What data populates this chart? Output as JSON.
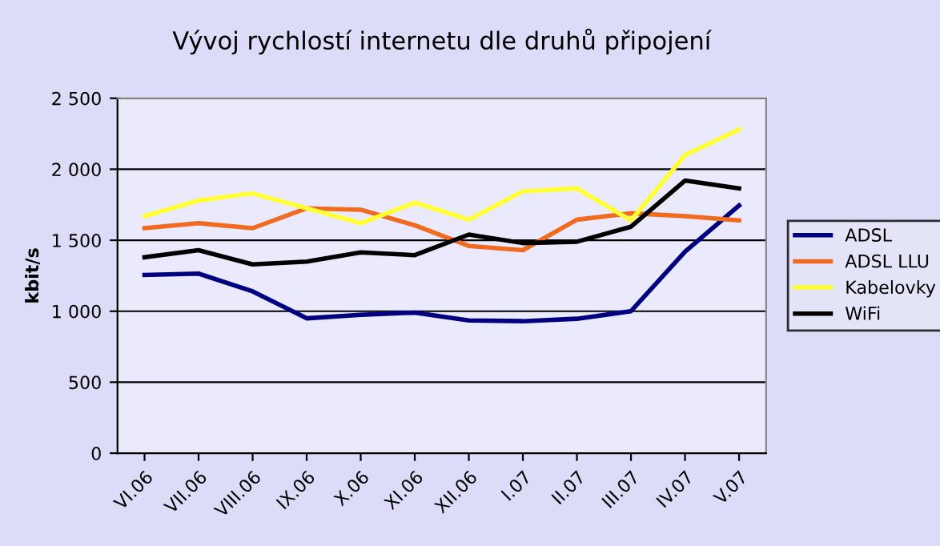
{
  "chart_data": {
    "type": "line",
    "title": "Vývoj rychlostí internetu dle druhů připojení",
    "ylabel": "kbit/s",
    "categories": [
      "VI.06",
      "VII.06",
      "VIII.06",
      "IX.06",
      "X.06",
      "XI.06",
      "XII.06",
      "I.07",
      "II.07",
      "III.07",
      "IV.07",
      "V.07"
    ],
    "series": [
      {
        "name": "ADSL",
        "color": "#000080",
        "values": [
          1255,
          1265,
          1140,
          950,
          975,
          990,
          935,
          930,
          947,
          1000,
          1420,
          1745
        ]
      },
      {
        "name": "ADSL LLU",
        "color": "#f06a20",
        "values": [
          1585,
          1620,
          1585,
          1725,
          1715,
          1605,
          1460,
          1430,
          1645,
          1690,
          1670,
          1640
        ]
      },
      {
        "name": "Kabelovky",
        "color": "#ffff33",
        "values": [
          1670,
          1780,
          1830,
          1725,
          1620,
          1765,
          1645,
          1845,
          1865,
          1640,
          2100,
          2280
        ]
      },
      {
        "name": "WiFi",
        "color": "#000000",
        "values": [
          1380,
          1430,
          1330,
          1350,
          1415,
          1395,
          1540,
          1480,
          1490,
          1595,
          1920,
          1865
        ]
      }
    ],
    "ylim": [
      0,
      2500
    ],
    "yticks": [
      0,
      {
        "value": 500,
        "label": "500"
      },
      {
        "value": 1000,
        "label": "1 000"
      },
      {
        "value": 1500,
        "label": "1 500"
      },
      {
        "value": 2000,
        "label": "2 000"
      },
      {
        "value": 2500,
        "label": "2 500"
      }
    ],
    "grid": "y",
    "legend": "right",
    "marker": "none",
    "line_style": "solid"
  }
}
